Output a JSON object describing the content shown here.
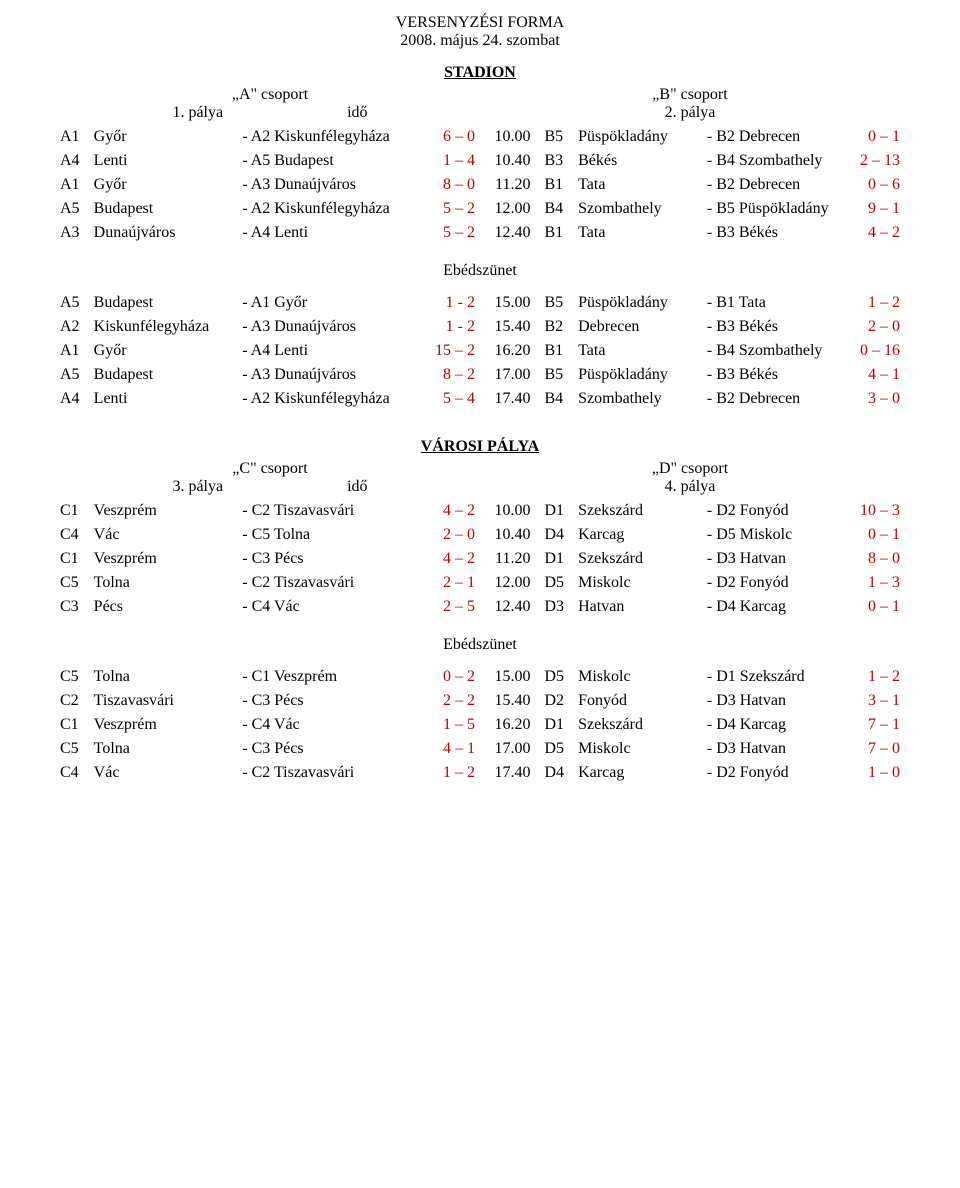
{
  "colors": {
    "score": "#c00000",
    "text": "#000000",
    "background": "#ffffff"
  },
  "typography": {
    "font_family": "Times New Roman",
    "title_size_pt": 12,
    "body_size_pt": 12
  },
  "header": {
    "title": "VERSENYZÉSI FORMA",
    "subtitle": "2008. május 24. szombat"
  },
  "venue1": {
    "name": "STADION",
    "left_group": "„A\" csoport",
    "left_field": "1. pálya",
    "time_label": "idő",
    "right_group": "„B\" csoport",
    "right_field": "2. pálya",
    "block1": [
      {
        "lc": "A1",
        "lt1": "Győr",
        "lt2": "A2 Kiskunfélegyháza",
        "sc1": "6 – 0",
        "time": "10.00",
        "rc": "B5",
        "rt1": "Püspökladány",
        "rt2": "B2 Debrecen",
        "sc2": "0 – 1"
      },
      {
        "lc": "A4",
        "lt1": "Lenti",
        "lt2": "A5 Budapest",
        "sc1": "1 – 4",
        "time": "10.40",
        "rc": "B3",
        "rt1": "Békés",
        "rt2": "B4 Szombathely",
        "sc2": "2 – 13"
      },
      {
        "lc": "A1",
        "lt1": "Győr",
        "lt2": "A3 Dunaújváros",
        "sc1": "8 – 0",
        "time": "11.20",
        "rc": "B1",
        "rt1": "Tata",
        "rt2": "B2 Debrecen",
        "sc2": "0 – 6"
      },
      {
        "lc": "A5",
        "lt1": "Budapest",
        "lt2": "A2 Kiskunfélegyháza",
        "sc1": "5 – 2",
        "time": "12.00",
        "rc": "B4",
        "rt1": "Szombathely",
        "rt2": "B5 Püspökladány",
        "sc2": "9 – 1"
      },
      {
        "lc": "A3",
        "lt1": "Dunaújváros",
        "lt2": "A4 Lenti",
        "sc1": "5 – 2",
        "time": "12.40",
        "rc": "B1",
        "rt1": "Tata",
        "rt2": "B3 Békés",
        "sc2": "4 – 2"
      }
    ],
    "break_label": "Ebédszünet",
    "block2": [
      {
        "lc": "A5",
        "lt1": "Budapest",
        "lt2": "A1 Győr",
        "sc1": "1 - 2",
        "time": "15.00",
        "rc": "B5",
        "rt1": "Püspökladány",
        "rt2": "B1 Tata",
        "sc2": "1 – 2"
      },
      {
        "lc": "A2",
        "lt1": "Kiskunfélegyháza",
        "lt2": "A3 Dunaújváros",
        "sc1": "1 - 2",
        "time": "15.40",
        "rc": "B2",
        "rt1": "Debrecen",
        "rt2": "B3 Békés",
        "sc2": "2 – 0"
      },
      {
        "lc": "A1",
        "lt1": "Győr",
        "lt2": "A4 Lenti",
        "sc1": "15 – 2",
        "time": "16.20",
        "rc": "B1",
        "rt1": "Tata",
        "rt2": "B4 Szombathely",
        "sc2": "0 – 16"
      },
      {
        "lc": "A5",
        "lt1": "Budapest",
        "lt2": "A3 Dunaújváros",
        "sc1": "8 – 2",
        "time": "17.00",
        "rc": "B5",
        "rt1": "Püspökladány",
        "rt2": "B3 Békés",
        "sc2": "4 – 1"
      },
      {
        "lc": "A4",
        "lt1": "Lenti",
        "lt2": "A2 Kiskunfélegyháza",
        "sc1": "5 – 4",
        "time": "17.40",
        "rc": "B4",
        "rt1": "Szombathely",
        "rt2": "B2 Debrecen",
        "sc2": "3 – 0"
      }
    ]
  },
  "venue2": {
    "name": "VÁROSI PÁLYA",
    "left_group": "„C\" csoport",
    "left_field": "3. pálya",
    "time_label": "idő",
    "right_group": "„D\" csoport",
    "right_field": "4. pálya",
    "block1": [
      {
        "lc": "C1",
        "lt1": "Veszprém",
        "lt2": "C2 Tiszavasvári",
        "sc1": "4 – 2",
        "time": "10.00",
        "rc": "D1",
        "rt1": "Szekszárd",
        "rt2": "D2 Fonyód",
        "sc2": "10 – 3"
      },
      {
        "lc": "C4",
        "lt1": "Vác",
        "lt2": "C5 Tolna",
        "sc1": "2 – 0",
        "time": "10.40",
        "rc": "D4",
        "rt1": "Karcag",
        "rt2": "D5 Miskolc",
        "sc2": "0 – 1"
      },
      {
        "lc": "C1",
        "lt1": "Veszprém",
        "lt2": "C3 Pécs",
        "sc1": "4 – 2",
        "time": "11.20",
        "rc": "D1",
        "rt1": "Szekszárd",
        "rt2": "D3 Hatvan",
        "sc2": "8 – 0"
      },
      {
        "lc": "C5",
        "lt1": "Tolna",
        "lt2": "C2 Tiszavasvári",
        "sc1": "2 – 1",
        "time": "12.00",
        "rc": "D5",
        "rt1": "Miskolc",
        "rt2": "D2 Fonyód",
        "sc2": "1 – 3"
      },
      {
        "lc": "C3",
        "lt1": "Pécs",
        "lt2": "C4 Vác",
        "sc1": "2 – 5",
        "time": "12.40",
        "rc": "D3",
        "rt1": "Hatvan",
        "rt2": "D4 Karcag",
        "sc2": "0 – 1"
      }
    ],
    "break_label": "Ebédszünet",
    "block2": [
      {
        "lc": "C5",
        "lt1": "Tolna",
        "lt2": "C1 Veszprém",
        "sc1": "0 – 2",
        "time": "15.00",
        "rc": "D5",
        "rt1": "Miskolc",
        "rt2": "D1 Szekszárd",
        "sc2": "1 – 2"
      },
      {
        "lc": "C2",
        "lt1": "Tiszavasvári",
        "lt2": "C3 Pécs",
        "sc1": "2 – 2",
        "time": "15.40",
        "rc": "D2",
        "rt1": "Fonyód",
        "rt2": "D3 Hatvan",
        "sc2": "3 – 1"
      },
      {
        "lc": "C1",
        "lt1": "Veszprém",
        "lt2": "C4 Vác",
        "sc1": "1 – 5",
        "time": "16.20",
        "rc": "D1",
        "rt1": "Szekszárd",
        "rt2": "D4 Karcag",
        "sc2": "7 – 1"
      },
      {
        "lc": "C5",
        "lt1": "Tolna",
        "lt2": "C3 Pécs",
        "sc1": "4 – 1",
        "time": "17.00",
        "rc": "D5",
        "rt1": "Miskolc",
        "rt2": "D3 Hatvan",
        "sc2": "7 – 0"
      },
      {
        "lc": "C4",
        "lt1": "Vác",
        "lt2": "C2 Tiszavasvári",
        "sc1": "1 – 2",
        "time": "17.40",
        "rc": "D4",
        "rt1": "Karcag",
        "rt2": "D2 Fonyód",
        "sc2": "1 – 0"
      }
    ]
  }
}
